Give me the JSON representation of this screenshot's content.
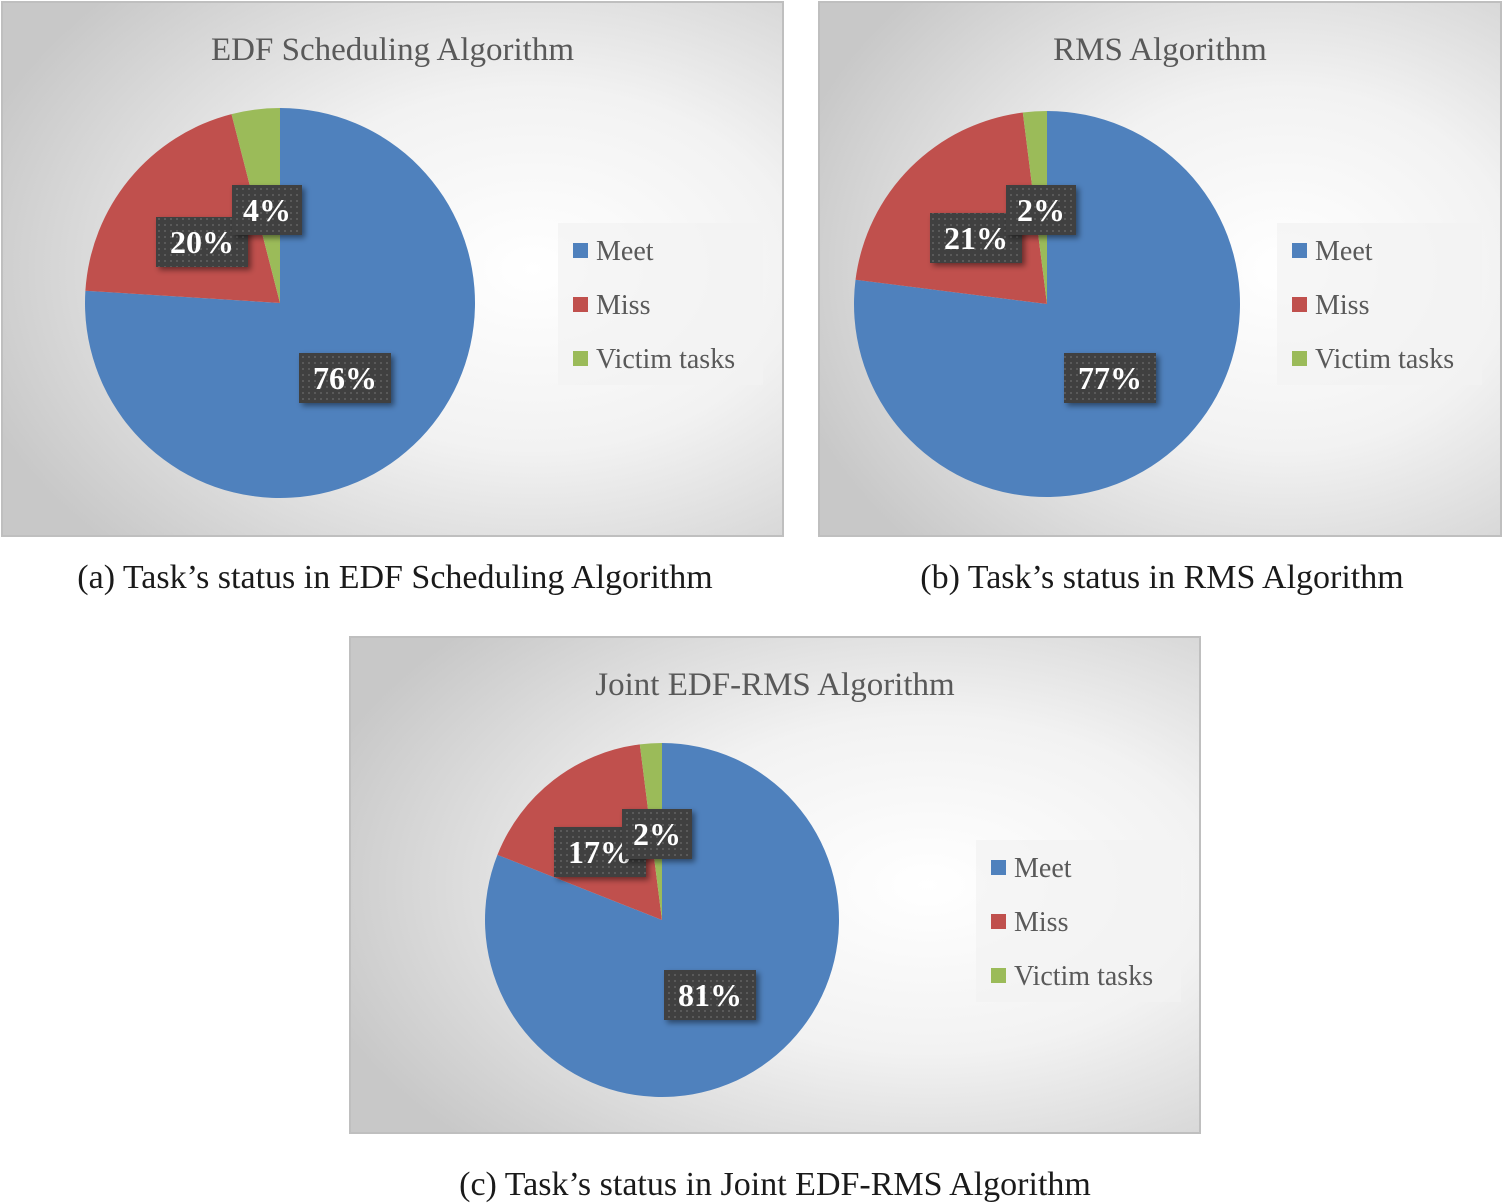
{
  "colors": {
    "Meet": "#4F81BD",
    "Miss": "#C0504D",
    "Victim tasks": "#9BBB59",
    "label_box": "#404040",
    "title": "#595959"
  },
  "chart_data": [
    {
      "type": "pie",
      "title": "EDF Scheduling Algorithm",
      "caption": "(a) Task’s status in EDF Scheduling Algorithm",
      "categories": [
        "Meet",
        "Miss",
        "Victim tasks"
      ],
      "values": [
        76,
        20,
        4
      ],
      "data_labels": [
        "76%",
        "20%",
        "4%"
      ],
      "legend": "right",
      "start_angle": "12 o'clock, clockwise"
    },
    {
      "type": "pie",
      "title": "RMS Algorithm",
      "caption": "(b) Task’s status in RMS Algorithm",
      "categories": [
        "Meet",
        "Miss",
        "Victim tasks"
      ],
      "values": [
        77,
        21,
        2
      ],
      "data_labels": [
        "77%",
        "21%",
        "2%"
      ],
      "legend": "right",
      "start_angle": "12 o'clock, clockwise"
    },
    {
      "type": "pie",
      "title": "Joint EDF-RMS Algorithm",
      "caption": "(c) Task’s status in Joint EDF-RMS Algorithm",
      "categories": [
        "Meet",
        "Miss",
        "Victim tasks"
      ],
      "values": [
        81,
        17,
        2
      ],
      "data_labels": [
        "81%",
        "17%",
        "2%"
      ],
      "legend": "right",
      "start_angle": "12 o'clock, clockwise"
    }
  ]
}
